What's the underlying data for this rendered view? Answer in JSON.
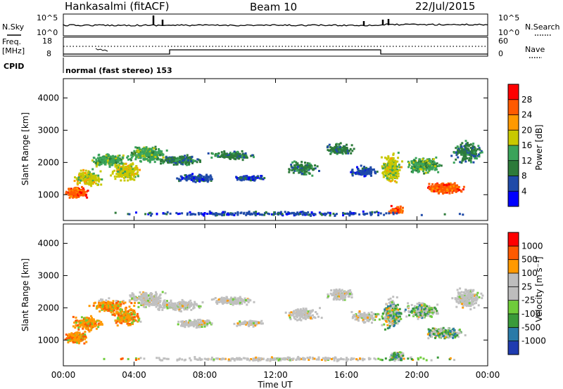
{
  "header": {
    "station": "Hankasalmi (fitACF)",
    "beam": "Beam 10",
    "date": "22/Jul/2015"
  },
  "top_panels": {
    "nsky_label": "N.Sky",
    "nsky_ticks": [
      "10^5",
      "10^0"
    ],
    "nsearch_label": "N.Search",
    "nsearch_ticks": [
      "10^5",
      "10^0"
    ],
    "freq_label": "Freq.",
    "freq_unit": "[MHz]",
    "freq_ticks": [
      "18",
      "8"
    ],
    "nave_label": "Nave",
    "nave_ticks": [
      "60",
      "0"
    ],
    "cpid_label": "CPID",
    "cpid_text": "normal (fast stereo) 153"
  },
  "colors": {
    "power": [
      "#0000ff",
      "#1f4aa8",
      "#2d7a3a",
      "#3aa35a",
      "#c8c800",
      "#ff9900",
      "#ff5a00",
      "#ff0000"
    ],
    "velocity": [
      "#1f3cb0",
      "#2a7aa8",
      "#3a9a3a",
      "#6fcc3a",
      "#bdbdbd",
      "#bdbdbd",
      "#ff9900",
      "#ff5a00",
      "#ff0000"
    ],
    "gray_scatter": "#c0c0c0"
  },
  "chart_data": [
    {
      "type": "heatmap",
      "title": "",
      "ylabel": "Slant Range [km]",
      "xlabel": "Time UT",
      "x_ticks": [
        "00:00",
        "04:00",
        "08:00",
        "12:00",
        "16:00",
        "20:00",
        "00:00"
      ],
      "y_ticks": [
        "1000",
        "2000",
        "3000",
        "4000"
      ],
      "ylim": [
        200,
        4600
      ],
      "xlim_hours": [
        0,
        24
      ],
      "colorbar_label": "Power [dB]",
      "colorbar_ticks": [
        "28",
        "24",
        "20",
        "16",
        "12",
        "8",
        "4"
      ],
      "colorbar_range": [
        0,
        30
      ]
    },
    {
      "type": "heatmap",
      "title": "",
      "ylabel": "Slant Range [km]",
      "xlabel": "Time UT",
      "x_ticks": [
        "00:00",
        "04:00",
        "08:00",
        "12:00",
        "16:00",
        "20:00",
        "00:00"
      ],
      "y_ticks": [
        "1000",
        "2000",
        "3000",
        "4000"
      ],
      "ylim": [
        200,
        4600
      ],
      "xlim_hours": [
        0,
        24
      ],
      "colorbar_label": "Velocity [m s⁻¹]",
      "colorbar_ticks": [
        "1000",
        "500",
        "100",
        "25",
        "-25",
        "-100",
        "-500",
        "-1000"
      ]
    }
  ]
}
